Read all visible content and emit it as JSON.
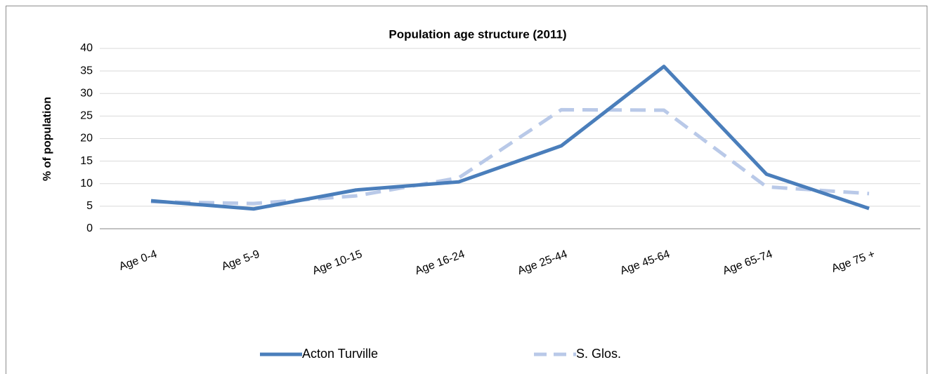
{
  "chart_data": {
    "type": "line",
    "title": "Population age structure (2011)",
    "y_label": "% of population",
    "categories": [
      "Age 0-4",
      "Age 5-9",
      "Age 10-15",
      "Age 16-24",
      "Age 25-44",
      "Age 45-64",
      "Age 65-74",
      "Age 75 +"
    ],
    "series": [
      {
        "name": "Acton Turville",
        "color": "#4a7ebb",
        "dashed": false,
        "values": [
          6.2,
          4.4,
          8.6,
          10.4,
          18.4,
          36.0,
          12.1,
          4.5
        ]
      },
      {
        "name": "S. Glos.",
        "color": "#b9c9e8",
        "dashed": true,
        "values": [
          6.0,
          5.6,
          7.3,
          11.3,
          26.4,
          26.3,
          9.3,
          7.8
        ]
      }
    ],
    "ylim": [
      0,
      40
    ],
    "yticks": [
      0,
      5,
      10,
      15,
      20,
      25,
      30,
      35,
      40
    ],
    "grid": true,
    "legend": "bottom"
  }
}
